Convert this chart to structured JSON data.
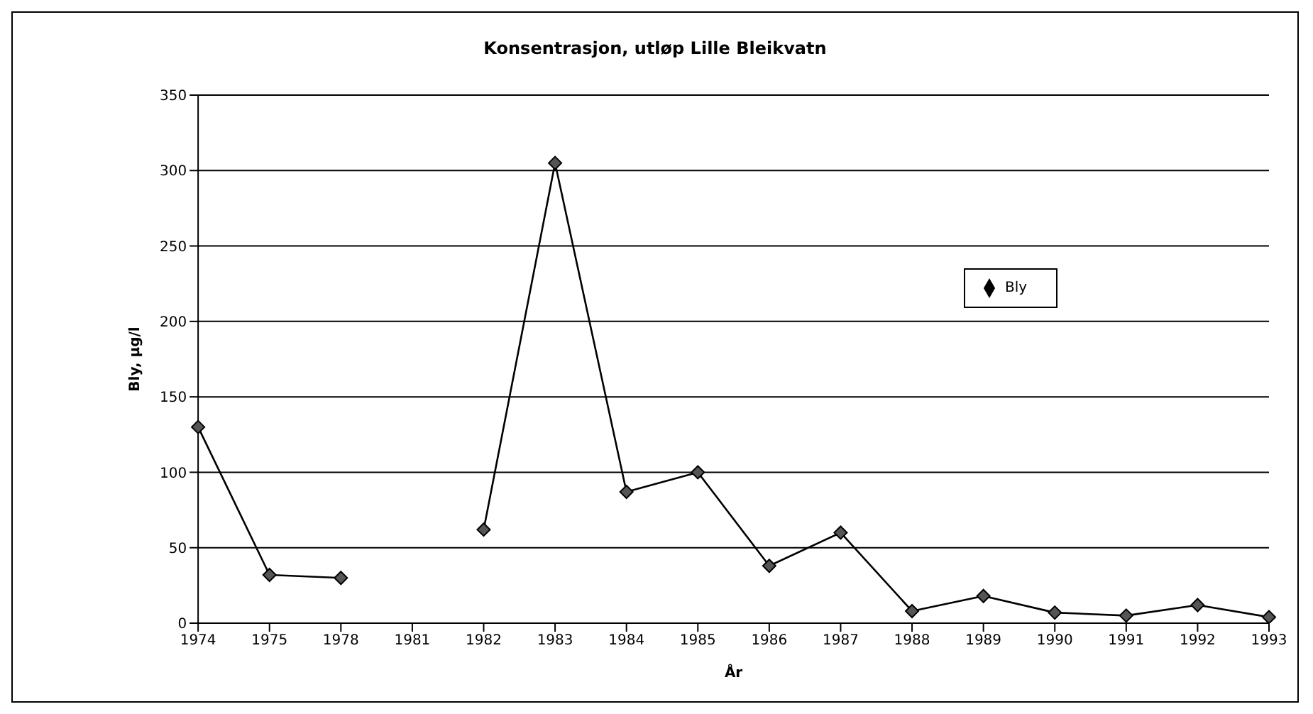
{
  "chart_data": {
    "type": "line",
    "title": "Konsentrasjon, utløp Lille Bleikvatn",
    "xlabel": "År",
    "ylabel": "Bly, µg/l",
    "categories": [
      "1974",
      "1975",
      "1978",
      "1981",
      "1982",
      "1983",
      "1984",
      "1985",
      "1986",
      "1987",
      "1988",
      "1989",
      "1990",
      "1991",
      "1992",
      "1993"
    ],
    "series": [
      {
        "name": "Bly",
        "color": "#000000",
        "values": [
          130,
          32,
          30,
          null,
          62,
          305,
          87,
          100,
          38,
          60,
          8,
          18,
          7,
          5,
          12,
          4
        ]
      }
    ],
    "ylim": [
      0,
      350
    ],
    "yticks": [
      0,
      50,
      100,
      150,
      200,
      250,
      300,
      350
    ],
    "grid": "y",
    "legend": "right",
    "marker": "diamond",
    "line_style": "solid"
  }
}
